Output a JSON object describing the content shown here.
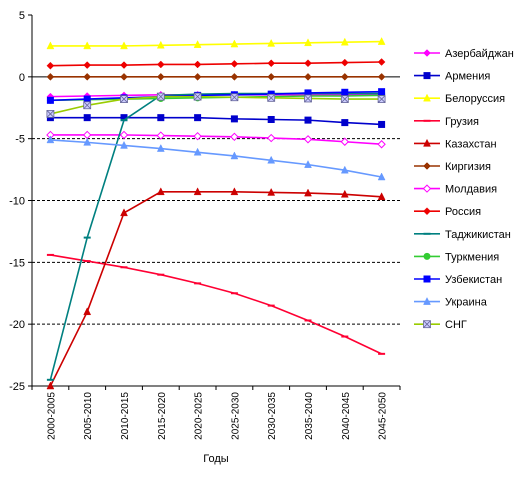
{
  "chart_data": {
    "type": "line",
    "title": "",
    "xlabel": "Годы",
    "ylabel": "",
    "ylim": [
      -25,
      5
    ],
    "yticks": [
      5,
      0,
      -5,
      -10,
      -15,
      -20,
      -25
    ],
    "gridlines": "dashed horizontal at -5, -10, -15, -20",
    "legend_position": "right",
    "categories": [
      "2000-2005",
      "2005-2010",
      "2010-2015",
      "2015-2020",
      "2020-2025",
      "2025-2030",
      "2030-2035",
      "2035-2040",
      "2040-2045",
      "2045-2050"
    ],
    "series": [
      {
        "name": "Азербайджан",
        "color": "#ff00ff",
        "marker": "diamond",
        "values": [
          -1.6,
          -1.55,
          -1.5,
          -1.45,
          -1.45,
          -1.45,
          -1.45,
          -1.45,
          -1.45,
          -1.45
        ]
      },
      {
        "name": "Армения",
        "color": "#0000cc",
        "marker": "square",
        "values": [
          -3.3,
          -3.3,
          -3.3,
          -3.3,
          -3.3,
          -3.4,
          -3.45,
          -3.5,
          -3.7,
          -3.85
        ]
      },
      {
        "name": "Белоруссия",
        "color": "#ffff00",
        "marker": "triangle",
        "values": [
          2.5,
          2.5,
          2.5,
          2.55,
          2.6,
          2.65,
          2.7,
          2.75,
          2.8,
          2.85
        ]
      },
      {
        "name": "Грузия",
        "color": "#ff0033",
        "marker": "dash",
        "values": [
          -14.4,
          -14.9,
          -15.4,
          -16.0,
          -16.7,
          -17.5,
          -18.5,
          -19.7,
          -21.0,
          -22.4
        ]
      },
      {
        "name": "Казахстан",
        "color": "#cc0000",
        "marker": "triangle",
        "values": [
          -25.0,
          -19.0,
          -11.0,
          -9.3,
          -9.3,
          -9.3,
          -9.35,
          -9.4,
          -9.5,
          -9.7
        ]
      },
      {
        "name": "Киргизия",
        "color": "#993300",
        "marker": "diamond",
        "values": [
          0.0,
          0.0,
          0.0,
          0.0,
          0.0,
          0.0,
          0.0,
          0.0,
          0.0,
          0.0
        ]
      },
      {
        "name": "Молдавия",
        "color": "#ff00ff",
        "marker": "diamond-open",
        "values": [
          -4.7,
          -4.7,
          -4.7,
          -4.75,
          -4.8,
          -4.85,
          -4.95,
          -5.05,
          -5.25,
          -5.45
        ]
      },
      {
        "name": "Россия",
        "color": "#ee0000",
        "marker": "diamond",
        "values": [
          0.9,
          0.95,
          0.95,
          1.0,
          1.0,
          1.05,
          1.1,
          1.1,
          1.15,
          1.2
        ]
      },
      {
        "name": "Таджикистан",
        "color": "#008080",
        "marker": "dash",
        "values": [
          -24.5,
          -13.0,
          -3.5,
          -1.5,
          -1.4,
          -1.35,
          -1.35,
          -1.35,
          -1.35,
          -1.35
        ]
      },
      {
        "name": "Туркмения",
        "color": "#33cc33",
        "marker": "circle",
        "values": [
          -1.9,
          -1.85,
          -1.8,
          -1.75,
          -1.7,
          -1.65,
          -1.6,
          -1.55,
          -1.55,
          -1.5
        ]
      },
      {
        "name": "Узбекистан",
        "color": "#0000ff",
        "marker": "square",
        "values": [
          -1.9,
          -1.8,
          -1.7,
          -1.6,
          -1.5,
          -1.45,
          -1.4,
          -1.3,
          -1.25,
          -1.2
        ]
      },
      {
        "name": "Украина",
        "color": "#6699ff",
        "marker": "triangle",
        "values": [
          -5.1,
          -5.3,
          -5.55,
          -5.8,
          -6.1,
          -6.4,
          -6.75,
          -7.1,
          -7.55,
          -8.1
        ]
      },
      {
        "name": "СНГ",
        "color": "#99cc00",
        "marker": "x-square",
        "values": [
          -3.0,
          -2.3,
          -1.8,
          -1.6,
          -1.6,
          -1.65,
          -1.7,
          -1.75,
          -1.8,
          -1.8
        ]
      }
    ]
  }
}
